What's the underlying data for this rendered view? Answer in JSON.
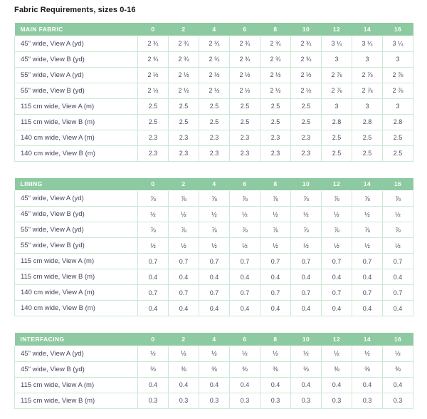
{
  "page_title": "Fabric Requirements, sizes 0-16",
  "colors": {
    "header_bg": "#8dcaa1",
    "header_text": "#ffffff",
    "grid_border": "#cce8d6",
    "cell_text": "#4c4c66",
    "title_text": "#1b1b1b",
    "page_bg": "#ffffff"
  },
  "sizes": [
    "0",
    "2",
    "4",
    "6",
    "8",
    "10",
    "12",
    "14",
    "16"
  ],
  "tables": [
    {
      "name": "MAIN FABRIC",
      "rows": [
        {
          "label": "45\" wide, View A (yd)",
          "values": [
            "2 ¾",
            "2 ¾",
            "2 ¾",
            "2 ¾",
            "2 ¾",
            "2 ¾",
            "3 ¼",
            "3 ¼",
            "3 ¼"
          ]
        },
        {
          "label": "45\" wide, View B (yd)",
          "values": [
            "2 ¾",
            "2 ¾",
            "2 ¾",
            "2 ¾",
            "2 ¾",
            "2 ¾",
            "3",
            "3",
            "3"
          ]
        },
        {
          "label": "55\" wide, View A (yd)",
          "values": [
            "2 ½",
            "2 ½",
            "2 ½",
            "2 ½",
            "2 ½",
            "2 ½",
            "2 ⅞",
            "2 ⅞",
            "2 ⅞"
          ]
        },
        {
          "label": "55\" wide, View B (yd)",
          "values": [
            "2 ½",
            "2 ½",
            "2 ½",
            "2 ½",
            "2 ½",
            "2 ½",
            "2 ⅞",
            "2 ⅞",
            "2 ⅞"
          ]
        },
        {
          "label": "115 cm wide, View A (m)",
          "values": [
            "2.5",
            "2.5",
            "2.5",
            "2.5",
            "2.5",
            "2.5",
            "3",
            "3",
            "3"
          ]
        },
        {
          "label": "115 cm wide, View B (m)",
          "values": [
            "2.5",
            "2.5",
            "2.5",
            "2.5",
            "2.5",
            "2.5",
            "2.8",
            "2.8",
            "2.8"
          ]
        },
        {
          "label": "140 cm wide, View A (m)",
          "values": [
            "2.3",
            "2.3",
            "2.3",
            "2.3",
            "2.3",
            "2.3",
            "2.5",
            "2.5",
            "2.5"
          ]
        },
        {
          "label": "140 cm wide, View B (m)",
          "values": [
            "2.3",
            "2.3",
            "2.3",
            "2.3",
            "2.3",
            "2.3",
            "2.5",
            "2.5",
            "2.5"
          ]
        }
      ]
    },
    {
      "name": "LINING",
      "rows": [
        {
          "label": "45\" wide, View A (yd)",
          "values": [
            "⅞",
            "⅞",
            "⅞",
            "⅞",
            "⅞",
            "⅞",
            "⅞",
            "⅞",
            "⅞"
          ]
        },
        {
          "label": "45\" wide, View B (yd)",
          "values": [
            "½",
            "½",
            "½",
            "½",
            "½",
            "½",
            "½",
            "½",
            "½"
          ]
        },
        {
          "label": "55\" wide, View A (yd)",
          "values": [
            "⅞",
            "⅞",
            "⅞",
            "⅞",
            "⅞",
            "⅞",
            "⅞",
            "⅞",
            "⅞"
          ]
        },
        {
          "label": "55\" wide, View B (yd)",
          "values": [
            "½",
            "½",
            "½",
            "½",
            "½",
            "½",
            "½",
            "½",
            "½"
          ]
        },
        {
          "label": "115 cm wide, View A (m)",
          "values": [
            "0.7",
            "0.7",
            "0.7",
            "0.7",
            "0.7",
            "0.7",
            "0.7",
            "0.7",
            "0.7"
          ]
        },
        {
          "label": "115 cm wide, View B (m)",
          "values": [
            "0.4",
            "0.4",
            "0.4",
            "0.4",
            "0.4",
            "0.4",
            "0.4",
            "0.4",
            "0.4"
          ]
        },
        {
          "label": "140 cm wide, View A (m)",
          "values": [
            "0.7",
            "0.7",
            "0.7",
            "0.7",
            "0.7",
            "0.7",
            "0.7",
            "0.7",
            "0.7"
          ]
        },
        {
          "label": "140 cm wide, View B (m)",
          "values": [
            "0.4",
            "0.4",
            "0.4",
            "0.4",
            "0.4",
            "0.4",
            "0.4",
            "0.4",
            "0.4"
          ]
        }
      ]
    },
    {
      "name": "INTERFACING",
      "rows": [
        {
          "label": "45\" wide, View A (yd)",
          "values": [
            "½",
            "½",
            "½",
            "½",
            "½",
            "½",
            "½",
            "½",
            "½"
          ]
        },
        {
          "label": "45\" wide, View B (yd)",
          "values": [
            "⅜",
            "⅜",
            "⅜",
            "⅜",
            "⅜",
            "⅜",
            "⅜",
            "⅜",
            "⅜"
          ]
        },
        {
          "label": "115 cm wide, View A (m)",
          "values": [
            "0.4",
            "0.4",
            "0.4",
            "0.4",
            "0.4",
            "0.4",
            "0.4",
            "0.4",
            "0.4"
          ]
        },
        {
          "label": "115 cm wide, View B (m)",
          "values": [
            "0.3",
            "0.3",
            "0.3",
            "0.3",
            "0.3",
            "0.3",
            "0.3",
            "0.3",
            "0.3"
          ]
        }
      ]
    }
  ]
}
